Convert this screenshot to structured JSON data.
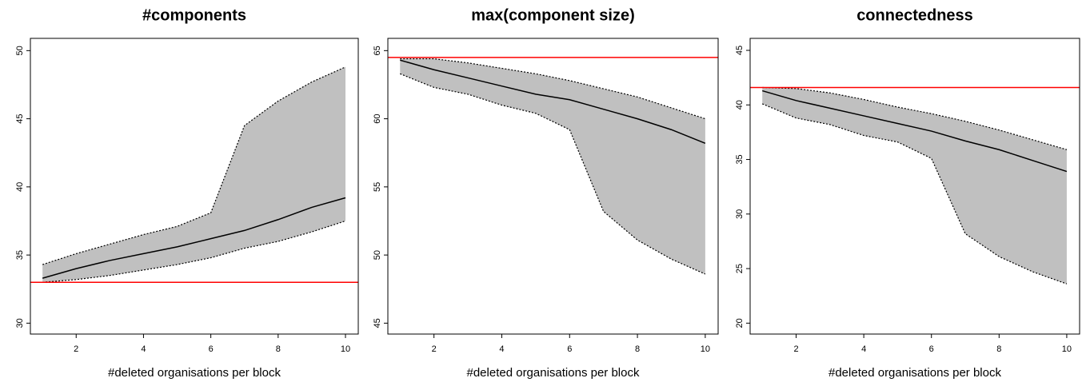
{
  "chart_data": [
    {
      "type": "line",
      "title": "#components",
      "xlabel": "#deleted organisations per block",
      "x": [
        1,
        2,
        3,
        4,
        5,
        6,
        7,
        8,
        9,
        10
      ],
      "series": [
        {
          "color": "#000000",
          "values": [
            33.3,
            34.0,
            34.6,
            35.1,
            35.6,
            36.2,
            36.8,
            37.6,
            38.5,
            39.2
          ]
        }
      ],
      "band": {
        "color": "#c0c0c0",
        "upper": [
          34.3,
          35.1,
          35.8,
          36.5,
          37.1,
          38.1,
          44.5,
          46.3,
          47.7,
          48.8
        ],
        "lower": [
          33.0,
          33.2,
          33.5,
          33.9,
          34.3,
          34.8,
          35.5,
          36.0,
          36.7,
          37.5
        ]
      },
      "hline": {
        "value": 33.0,
        "color": "#ff0000"
      },
      "xlim": [
        0.64,
        10.38
      ],
      "ylim": [
        29.2,
        50.9
      ],
      "xticks": [
        2,
        4,
        6,
        8,
        10
      ],
      "yticks": [
        30,
        35,
        40,
        45,
        50
      ]
    },
    {
      "type": "line",
      "title": "max(component size)",
      "xlabel": "#deleted organisations per block",
      "x": [
        1,
        2,
        3,
        4,
        5,
        6,
        7,
        8,
        9,
        10
      ],
      "series": [
        {
          "color": "#000000",
          "values": [
            64.3,
            63.6,
            63.0,
            62.4,
            61.8,
            61.4,
            60.7,
            60.0,
            59.2,
            58.2
          ]
        }
      ],
      "band": {
        "color": "#c0c0c0",
        "upper": [
          64.4,
          64.4,
          64.1,
          63.7,
          63.3,
          62.8,
          62.2,
          61.6,
          60.8,
          60.0
        ],
        "lower": [
          63.3,
          62.3,
          61.8,
          61.0,
          60.4,
          59.2,
          53.2,
          51.1,
          49.7,
          48.6
        ]
      },
      "hline": {
        "value": 64.5,
        "color": "#ff0000"
      },
      "xlim": [
        0.64,
        10.38
      ],
      "ylim": [
        44.2,
        65.9
      ],
      "xticks": [
        2,
        4,
        6,
        8,
        10
      ],
      "yticks": [
        45,
        50,
        55,
        60,
        65
      ]
    },
    {
      "type": "line",
      "title": "connectedness",
      "xlabel": "#deleted organisations per block",
      "x": [
        1,
        2,
        3,
        4,
        5,
        6,
        7,
        8,
        9,
        10
      ],
      "series": [
        {
          "color": "#000000",
          "values": [
            41.3,
            40.4,
            39.7,
            39.0,
            38.3,
            37.6,
            36.7,
            35.9,
            34.9,
            33.9
          ]
        }
      ],
      "band": {
        "color": "#c0c0c0",
        "upper": [
          41.6,
          41.5,
          41.1,
          40.5,
          39.8,
          39.2,
          38.5,
          37.7,
          36.8,
          35.9
        ],
        "lower": [
          40.1,
          38.8,
          38.2,
          37.2,
          36.6,
          35.1,
          28.2,
          26.1,
          24.7,
          23.6
        ]
      },
      "hline": {
        "value": 41.6,
        "color": "#ff0000"
      },
      "xlim": [
        0.64,
        10.38
      ],
      "ylim": [
        19.0,
        46.1
      ],
      "xticks": [
        2,
        4,
        6,
        8,
        10
      ],
      "yticks": [
        20,
        25,
        30,
        35,
        40,
        45
      ]
    }
  ]
}
